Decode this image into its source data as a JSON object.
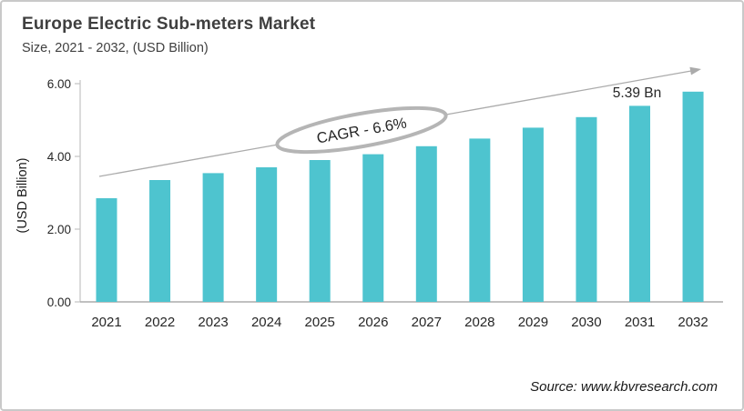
{
  "header": {
    "title": "Europe Electric Sub-meters Market",
    "subtitle": "Size, 2021 - 2032, (USD Billion)"
  },
  "chart_data": {
    "type": "bar",
    "title": "Europe Electric Sub-meters Market",
    "subtitle": "Size, 2021 - 2032, (USD Billion)",
    "categories": [
      "2021",
      "2022",
      "2023",
      "2024",
      "2025",
      "2026",
      "2027",
      "2028",
      "2029",
      "2030",
      "2031",
      "2032"
    ],
    "values": [
      2.85,
      3.35,
      3.54,
      3.7,
      3.9,
      4.06,
      4.28,
      4.49,
      4.79,
      5.08,
      5.39,
      5.78
    ],
    "xlabel": "",
    "ylabel": "(USD Billion)",
    "ylim": [
      0,
      6
    ],
    "yticks": [
      0,
      2,
      4,
      6
    ],
    "ytick_labels": [
      "0.00",
      "2.00",
      "4.00",
      "6.00"
    ],
    "grid": false,
    "legend": "none",
    "bar_color": "#4ec4cf",
    "axis_color": "#c3c3c3",
    "tick_label_color": "#262626",
    "trend_arrow": {
      "show": true,
      "color": "#ababab"
    },
    "annotations": {
      "cagr_label": "CAGR - 6.6%",
      "peak_label": "5.39 Bn",
      "peak_category": "2031"
    }
  },
  "footer": {
    "source": "Source: www.kbvresearch.com"
  }
}
